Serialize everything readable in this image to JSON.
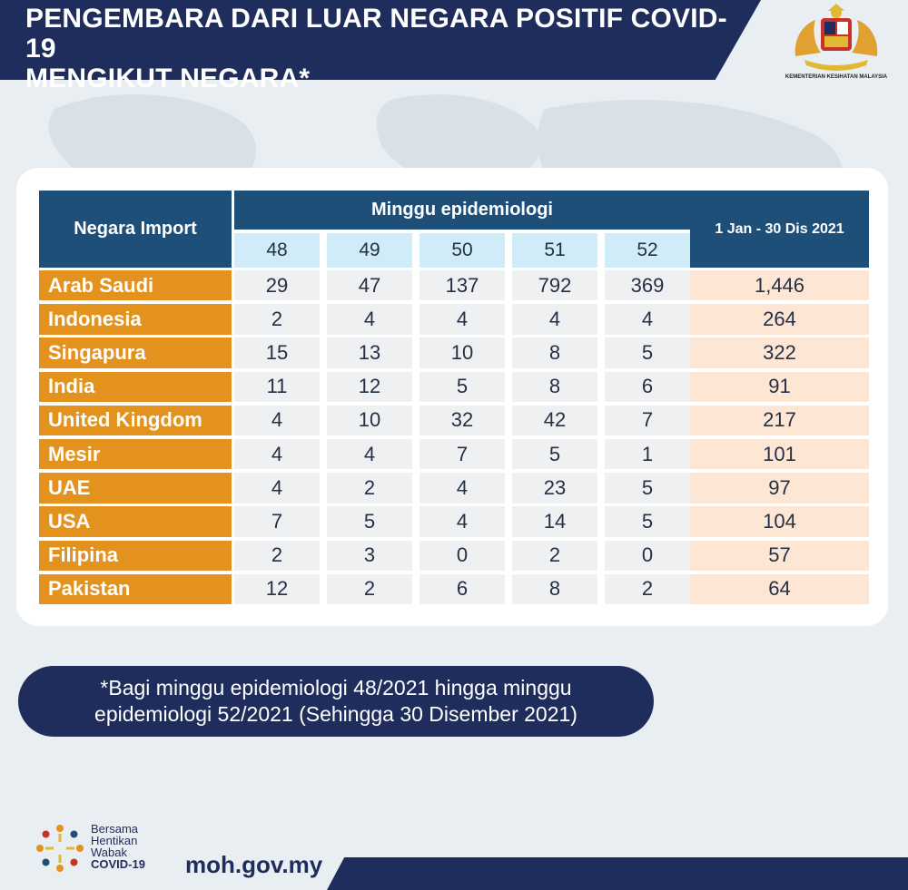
{
  "header": {
    "title_line1": "PENGEMBARA DARI LUAR NEGARA POSITIF COVID-19",
    "title_line2": "MENGIKUT NEGARA*",
    "logo_caption": "KEMENTERIAN KESIHATAN MALAYSIA"
  },
  "chart_data": {
    "type": "table",
    "columns": {
      "country_header": "Negara Import",
      "week_group_header": "Minggu epidemiologi",
      "weeks": [
        "48",
        "49",
        "50",
        "51",
        "52"
      ],
      "total_header": "1 Jan - 30 Dis 2021"
    },
    "rows": [
      {
        "country": "Arab Saudi",
        "values": [
          "29",
          "47",
          "137",
          "792",
          "369"
        ],
        "total": "1,446"
      },
      {
        "country": "Indonesia",
        "values": [
          "2",
          "4",
          "4",
          "4",
          "4"
        ],
        "total": "264"
      },
      {
        "country": "Singapura",
        "values": [
          "15",
          "13",
          "10",
          "8",
          "5"
        ],
        "total": "322"
      },
      {
        "country": "India",
        "values": [
          "11",
          "12",
          "5",
          "8",
          "6"
        ],
        "total": "91"
      },
      {
        "country": "United Kingdom",
        "values": [
          "4",
          "10",
          "32",
          "42",
          "7"
        ],
        "total": "217"
      },
      {
        "country": "Mesir",
        "values": [
          "4",
          "4",
          "7",
          "5",
          "1"
        ],
        "total": "101"
      },
      {
        "country": "UAE",
        "values": [
          "4",
          "2",
          "4",
          "23",
          "5"
        ],
        "total": "97"
      },
      {
        "country": "USA",
        "values": [
          "7",
          "5",
          "4",
          "14",
          "5"
        ],
        "total": "104"
      },
      {
        "country": "Filipina",
        "values": [
          "2",
          "3",
          "0",
          "2",
          "0"
        ],
        "total": "57"
      },
      {
        "country": "Pakistan",
        "values": [
          "12",
          "2",
          "6",
          "8",
          "2"
        ],
        "total": "64"
      }
    ]
  },
  "note": {
    "line1": "*Bagi minggu epidemiologi 48/2021 hingga minggu",
    "line2": "epidemiologi 52/2021 (Sehingga 30 Disember 2021)"
  },
  "footer": {
    "campaign_line1": "Bersama",
    "campaign_line2": "Hentikan",
    "campaign_line3": "Wabak",
    "campaign_line4": "COVID-19",
    "website": "moh.gov.my"
  },
  "colors": {
    "navy": "#1e2d5c",
    "header_blue": "#1e4f79",
    "week_light_blue": "#d0ecf9",
    "country_orange": "#e3921d",
    "value_grey": "#eef0f2",
    "total_peach": "#fde7d4"
  }
}
